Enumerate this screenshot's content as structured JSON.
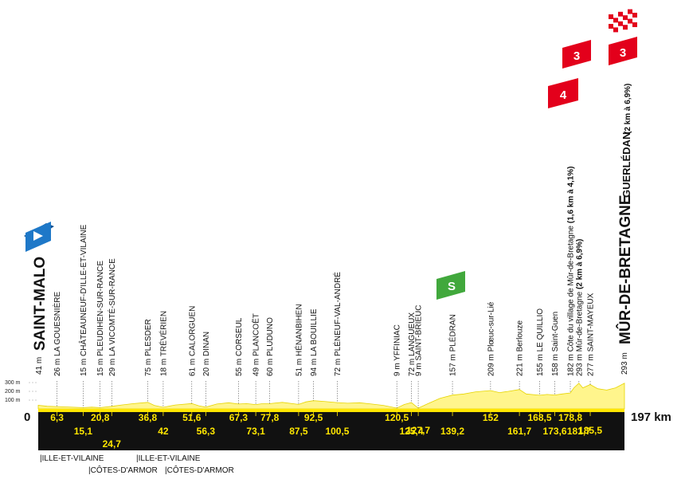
{
  "chart_data": {
    "type": "area",
    "x_unit": "km",
    "start_km_label": "0",
    "end_km_label": "197 km",
    "altitude_ticks": [
      "300 m",
      "200 m",
      "100 m"
    ],
    "start": {
      "name": "SAINT-MALO",
      "altitude": "41 m"
    },
    "finish": {
      "name": "MÛR-DE-BRETAGNE",
      "subname": "GUERLÉDAN",
      "detail": "(2 km à 6,9%)",
      "altitude": "293 m"
    },
    "checkpoints": [
      {
        "km": 6.3,
        "km_label": "6,3",
        "alt": 26,
        "label": "26 m LA GOUESNIÈRE"
      },
      {
        "km": 15.1,
        "km_label": "15,1",
        "alt": 15,
        "label": "15 m CHÂTEAUNEUF-D'ILLE-ET-VILAINE"
      },
      {
        "km": 20.8,
        "km_label": "20,8",
        "alt": 15,
        "label": "15 m PLEUDIHEN-SUR-RANCE"
      },
      {
        "km": 24.7,
        "km_label": "24,7",
        "alt": 29,
        "label": "29 m LA VICOMTÉ-SUR-RANCE"
      },
      {
        "km": 36.8,
        "km_label": "36,8",
        "alt": 75,
        "label": "75 m PLESDER"
      },
      {
        "km": 42,
        "km_label": "42",
        "alt": 18,
        "label": "18 m TRÉVÉRIEN"
      },
      {
        "km": 51.6,
        "km_label": "51,6",
        "alt": 61,
        "label": "61 m CALORGUEN"
      },
      {
        "km": 56.3,
        "km_label": "56,3",
        "alt": 20,
        "label": "20 m DINAN"
      },
      {
        "km": 67.3,
        "km_label": "67,3",
        "alt": 55,
        "label": "55 m CORSEUL"
      },
      {
        "km": 73.1,
        "km_label": "73,1",
        "alt": 49,
        "label": "49 m PLANCOËT"
      },
      {
        "km": 77.8,
        "km_label": "77,8",
        "alt": 60,
        "label": "60 m PLUDUNO"
      },
      {
        "km": 87.5,
        "km_label": "87,5",
        "alt": 51,
        "label": "51 m HÉNANBIHEN"
      },
      {
        "km": 92.5,
        "km_label": "92,5",
        "alt": 94,
        "label": "94 m LA BOUILLIE"
      },
      {
        "km": 100.5,
        "km_label": "100,5",
        "alt": 72,
        "label": "72 m PLÉNEUF-VAL-ANDRÉ"
      },
      {
        "km": 120.5,
        "km_label": "120,5",
        "alt": 9,
        "label": "9 m YFFINIAC"
      },
      {
        "km": 125.4,
        "km_label": "125,4",
        "alt": 72,
        "label": "72 m LANGUEUX"
      },
      {
        "km": 127.7,
        "km_label": "127,7",
        "alt": 9,
        "label": "9 m SAINT-BRIEUC"
      },
      {
        "km": 139.2,
        "km_label": "139,2",
        "alt": 157,
        "label": "157 m PLÉDRAN"
      },
      {
        "km": 152,
        "km_label": "152",
        "alt": 209,
        "label": "209 m Plœuc-sur-Lié"
      },
      {
        "km": 161.7,
        "km_label": "161,7",
        "alt": 221,
        "label": "221 m Berlouze"
      },
      {
        "km": 168.5,
        "km_label": "168,5",
        "alt": 155,
        "label": "155 m LE QUILLIO"
      },
      {
        "km": 173.6,
        "km_label": "173,6",
        "alt": 158,
        "label": "158 m Saint-Guen"
      },
      {
        "km": 178.8,
        "km_label": "178,8",
        "alt": 182,
        "label": "182 m Côte du village de Mûr-de-Bretagne",
        "detail": "(1,6 km à 4,1%)"
      },
      {
        "km": 181.7,
        "km_label": "181,7",
        "alt": 293,
        "label": "293 m Mûr-de-Bretagne",
        "detail": "(2 km à 6,9%)"
      },
      {
        "km": 185.5,
        "km_label": "185,5",
        "alt": 277,
        "label": "277 m SAINT-MAYEUX"
      }
    ],
    "profile": [
      [
        0,
        41
      ],
      [
        3,
        30
      ],
      [
        6.3,
        26
      ],
      [
        10,
        22
      ],
      [
        15.1,
        15
      ],
      [
        18,
        20
      ],
      [
        20.8,
        15
      ],
      [
        24.7,
        29
      ],
      [
        28,
        45
      ],
      [
        32,
        60
      ],
      [
        36.8,
        75
      ],
      [
        39,
        40
      ],
      [
        42,
        18
      ],
      [
        46,
        45
      ],
      [
        51.6,
        61
      ],
      [
        54,
        35
      ],
      [
        56.3,
        20
      ],
      [
        60,
        55
      ],
      [
        64,
        70
      ],
      [
        67.3,
        55
      ],
      [
        70,
        60
      ],
      [
        73.1,
        49
      ],
      [
        75,
        58
      ],
      [
        77.8,
        60
      ],
      [
        82,
        75
      ],
      [
        87.5,
        51
      ],
      [
        90,
        80
      ],
      [
        92.5,
        94
      ],
      [
        96,
        85
      ],
      [
        100.5,
        72
      ],
      [
        104,
        65
      ],
      [
        108,
        70
      ],
      [
        112,
        55
      ],
      [
        116,
        40
      ],
      [
        120.5,
        9
      ],
      [
        123,
        50
      ],
      [
        125.4,
        72
      ],
      [
        127.7,
        9
      ],
      [
        131,
        60
      ],
      [
        135,
        120
      ],
      [
        139.2,
        157
      ],
      [
        143,
        170
      ],
      [
        147,
        195
      ],
      [
        152,
        209
      ],
      [
        155,
        185
      ],
      [
        158,
        200
      ],
      [
        161.7,
        221
      ],
      [
        164,
        170
      ],
      [
        168.5,
        155
      ],
      [
        171,
        165
      ],
      [
        173.6,
        158
      ],
      [
        176,
        170
      ],
      [
        178.8,
        182
      ],
      [
        180,
        240
      ],
      [
        181.7,
        293
      ],
      [
        183,
        240
      ],
      [
        185.5,
        277
      ],
      [
        188,
        230
      ],
      [
        191,
        215
      ],
      [
        194,
        240
      ],
      [
        197,
        293
      ]
    ],
    "markers": {
      "sprint": {
        "label": "S",
        "km": 139.2
      },
      "climbs": [
        {
          "category": "4",
          "km": 178.8
        },
        {
          "category": "3",
          "km": 181.7
        },
        {
          "category": "3",
          "km": 197
        }
      ]
    },
    "colors": {
      "profile": "#fff58c",
      "road": "#ffe600",
      "band": "#111111",
      "start_flag": "#1e78c8",
      "sprint": "#41a83c",
      "climb": "#e3001b"
    }
  },
  "regions": {
    "r1": "|ILLE-ET-VILAINE",
    "r2": "|ILLE-ET-VILAINE",
    "r3": "|CÔTES-D'ARMOR",
    "r4": "|CÔTES-D'ARMOR"
  }
}
